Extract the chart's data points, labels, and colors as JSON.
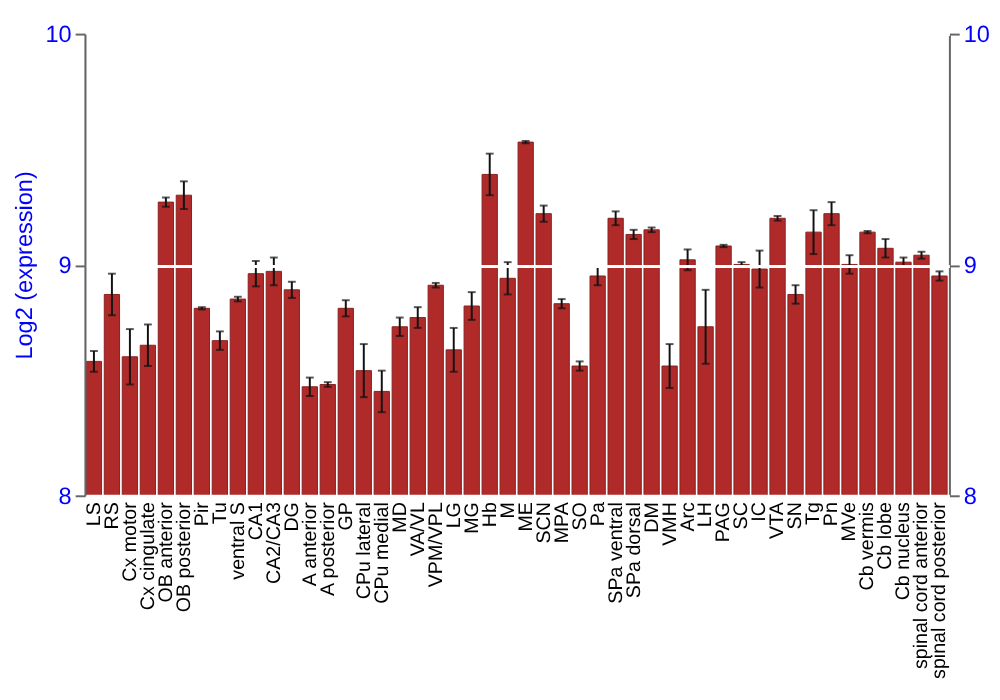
{
  "chart_data": {
    "type": "bar",
    "ylabel": "Log2 (expression)",
    "categories": [
      "LS",
      "RS",
      "Cx motor",
      "Cx cingulate",
      "OB anterior",
      "OB posterior",
      "Pir",
      "Tu",
      "ventral S",
      "CA1",
      "CA2/CA3",
      "DG",
      "A anterior",
      "A posterior",
      "GP",
      "CPu lateral",
      "CPu medial",
      "MD",
      "VA/VL",
      "VPM/VPL",
      "LG",
      "MG",
      "Hb",
      "M",
      "ME",
      "SCN",
      "MPA",
      "SO",
      "Pa",
      "SPa ventral",
      "SPa dorsal",
      "DM",
      "VMH",
      "Arc",
      "LH",
      "PAG",
      "SC",
      "IC",
      "VTA",
      "SN",
      "Tg",
      "Pn",
      "MVe",
      "Cb vermis",
      "Cb lobe",
      "Cb nucleus",
      "spinal cord anterior",
      "spinal cord posterior"
    ],
    "values": [
      8.58,
      8.87,
      8.6,
      8.65,
      9.27,
      9.3,
      8.81,
      8.67,
      8.85,
      8.96,
      8.97,
      8.89,
      8.47,
      8.48,
      8.81,
      8.54,
      8.45,
      8.73,
      8.77,
      8.91,
      8.63,
      8.82,
      9.39,
      8.94,
      9.53,
      9.22,
      8.83,
      8.56,
      8.95,
      9.2,
      9.13,
      9.15,
      8.56,
      9.02,
      8.73,
      9.08,
      9.0,
      8.98,
      9.2,
      8.87,
      9.14,
      9.22,
      9.0,
      9.14,
      9.07,
      9.01,
      9.04,
      8.95
    ],
    "errors": [
      0.045,
      0.09,
      0.12,
      0.09,
      0.02,
      0.06,
      0.005,
      0.04,
      0.01,
      0.055,
      0.06,
      0.035,
      0.04,
      0.01,
      0.035,
      0.115,
      0.09,
      0.04,
      0.045,
      0.01,
      0.095,
      0.06,
      0.09,
      0.07,
      0.005,
      0.035,
      0.02,
      0.02,
      0.04,
      0.03,
      0.02,
      0.01,
      0.095,
      0.045,
      0.16,
      0.005,
      0.01,
      0.08,
      0.01,
      0.04,
      0.095,
      0.05,
      0.04,
      0.005,
      0.04,
      0.02,
      0.015,
      0.02
    ],
    "color": "#b02a2a",
    "ylim": [
      8,
      10
    ],
    "yticks": [
      8,
      9,
      10
    ],
    "y2lim": [
      8,
      10
    ],
    "y2ticks": [
      8,
      9,
      10
    ],
    "grid": "y"
  }
}
